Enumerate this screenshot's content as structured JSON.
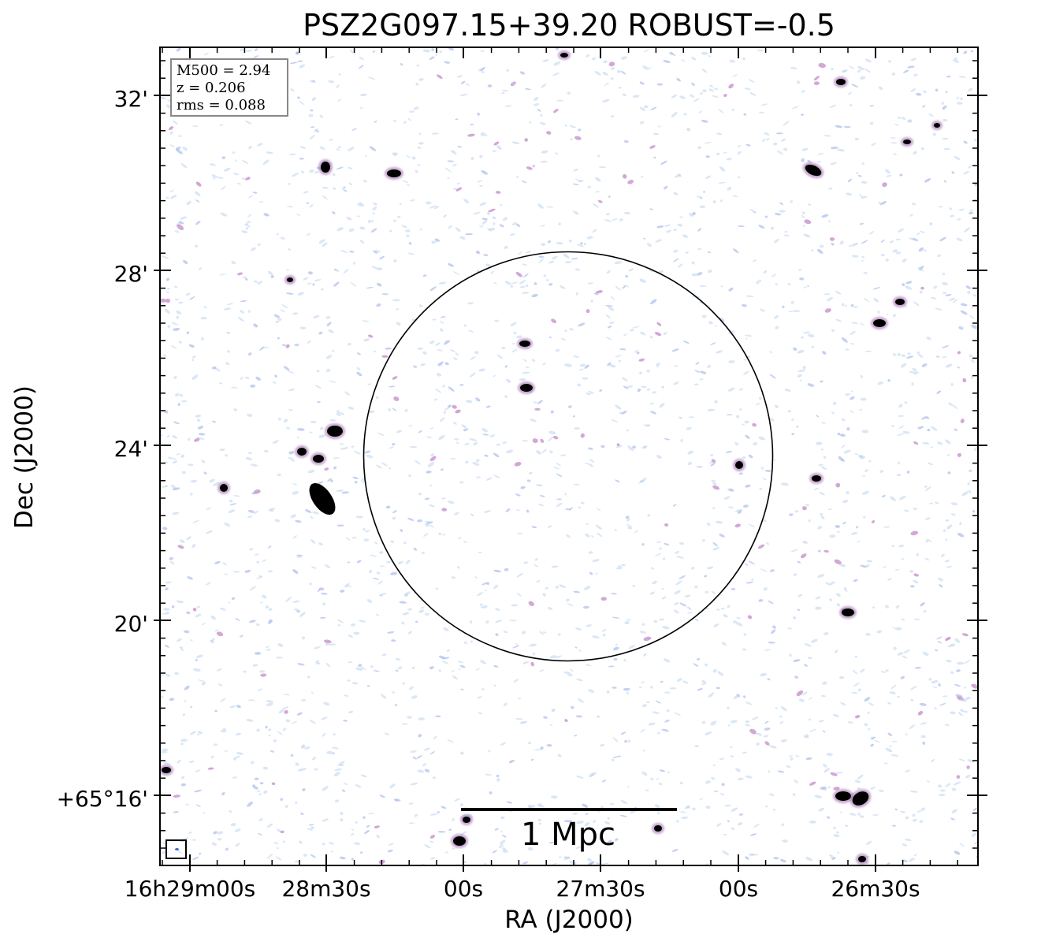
{
  "title": "PSZ2G097.15+39.20 ROBUST=-0.5",
  "axes": {
    "xlabel": "RA (J2000)",
    "ylabel": "Dec (J2000)",
    "x_ticks": [
      "16h29m00s",
      "28m30s",
      "00s",
      "27m30s",
      "00s",
      "26m30s"
    ],
    "y_ticks": [
      "+65°16'",
      "20'",
      "24'",
      "28'",
      "32'"
    ]
  },
  "legend": {
    "m500": "M500 = 2.94",
    "z": "z = 0.206",
    "rms": "rms = 0.088"
  },
  "scale_bar": {
    "label": "1 Mpc"
  },
  "colors": {
    "frame": "#000000",
    "noise_light": "#bcd4ec",
    "noise_blue": "#9fb3ea",
    "noise_pink": "#c48ac9",
    "source": "#000000",
    "beam": "#3a6ad0"
  },
  "icons": {
    "beam": "beam-ellipse-icon"
  }
}
